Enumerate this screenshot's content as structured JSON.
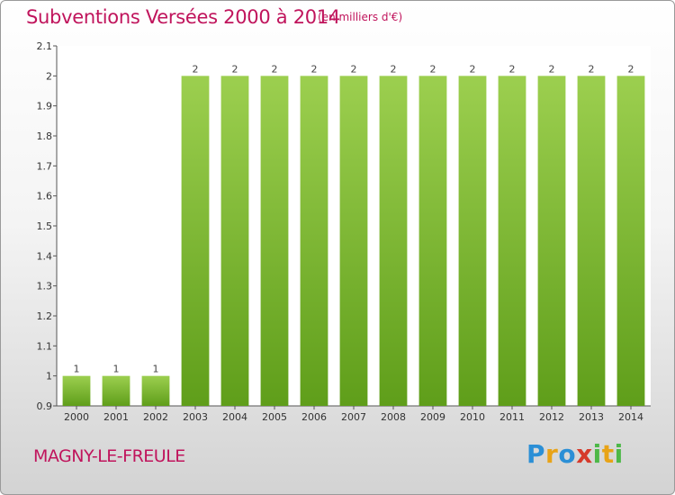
{
  "title": "Subventions Versées 2000 à 2014",
  "subtitle": "(en milliers d'€)",
  "commune": "MAGNY-LE-FREULE",
  "logo": {
    "p": "P",
    "r": "r",
    "o1": "o",
    "x": "x",
    "i1": "i",
    "t": "t",
    "i2": "i"
  },
  "colors": {
    "bar_light": "#9ccf4f",
    "bar_dark": "#5f9e1a",
    "title": "#c0145c"
  },
  "chart_data": {
    "type": "bar",
    "categories": [
      "2000",
      "2001",
      "2002",
      "2003",
      "2004",
      "2005",
      "2006",
      "2007",
      "2008",
      "2009",
      "2010",
      "2011",
      "2012",
      "2013",
      "2014"
    ],
    "values": [
      1,
      1,
      1,
      2,
      2,
      2,
      2,
      2,
      2,
      2,
      2,
      2,
      2,
      2,
      2
    ],
    "data_labels": [
      "1",
      "1",
      "1",
      "2",
      "2",
      "2",
      "2",
      "2",
      "2",
      "2",
      "2",
      "2",
      "2",
      "2",
      "2"
    ],
    "yticks": [
      0.9,
      1,
      1.1,
      1.2,
      1.3,
      1.4,
      1.5,
      1.6,
      1.7,
      1.8,
      1.9,
      2,
      2.1
    ],
    "ytick_labels": [
      "0.9",
      "1",
      "1.1",
      "1.2",
      "1.3",
      "1.4",
      "1.5",
      "1.6",
      "1.7",
      "1.8",
      "1.9",
      "2",
      "2.1"
    ],
    "ylim": [
      0.9,
      2.1
    ],
    "grid": false,
    "legend": "none"
  }
}
